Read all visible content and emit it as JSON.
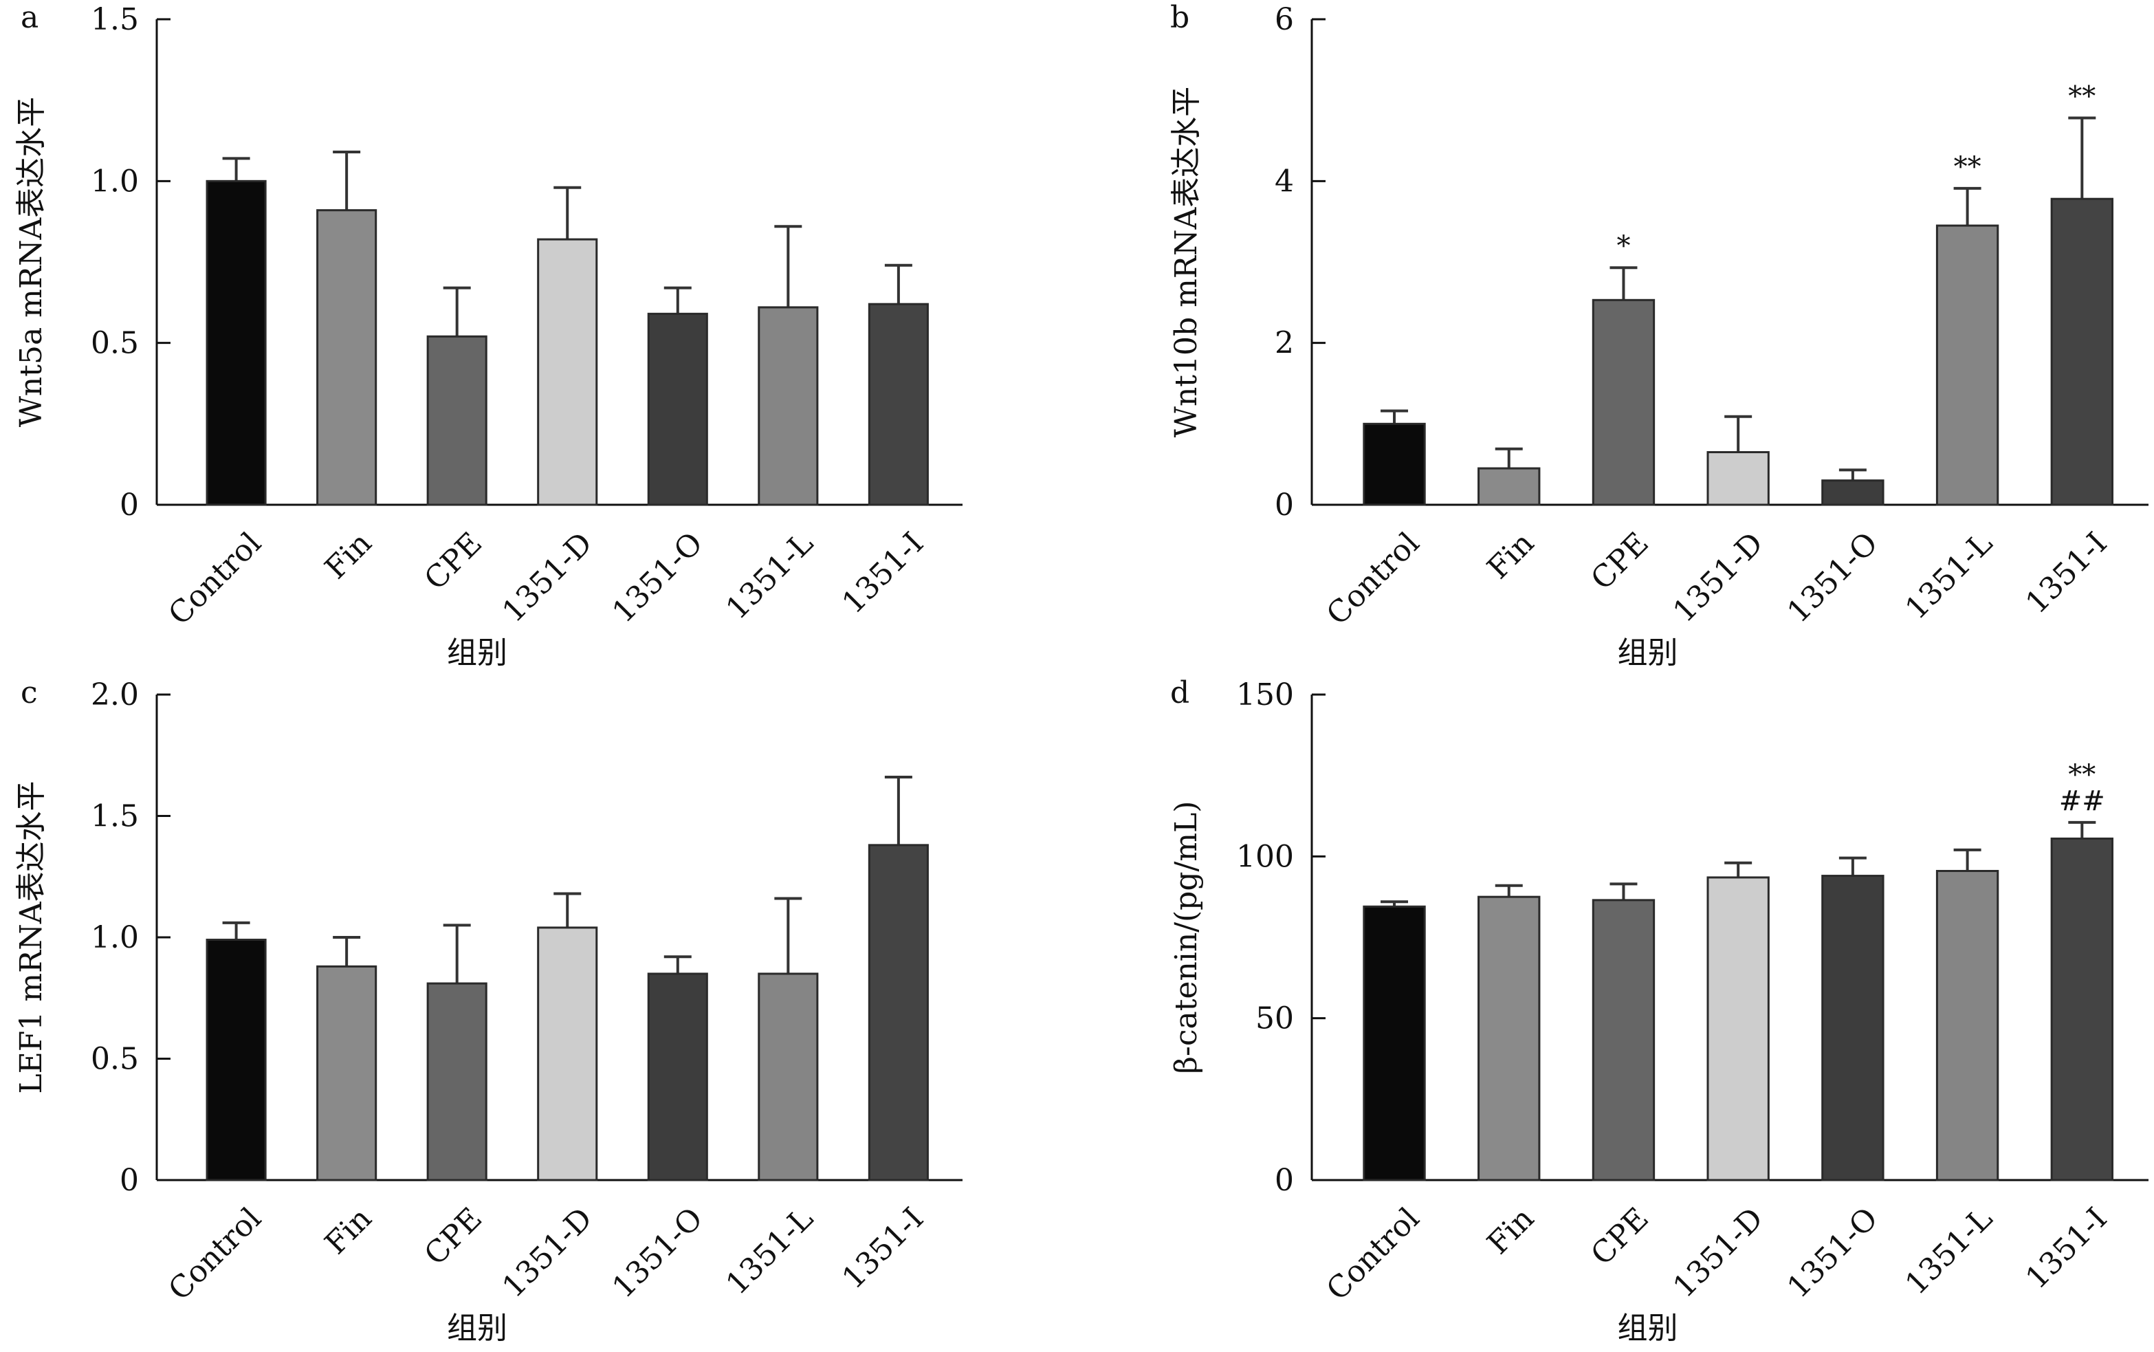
{
  "xlabel_shared": "组别",
  "chart_data": [
    {
      "panel": "a",
      "type": "bar",
      "categories": [
        "Control",
        "Fin",
        "CPE",
        "1351-D",
        "1351-O",
        "1351-L",
        "1351-I"
      ],
      "values": [
        1.0,
        0.91,
        0.52,
        0.82,
        0.59,
        0.61,
        0.62
      ],
      "errors": [
        0.07,
        0.18,
        0.15,
        0.16,
        0.08,
        0.25,
        0.12
      ],
      "significance": [
        "",
        "",
        "",
        "",
        "",
        "",
        ""
      ],
      "xlabel": "组别",
      "ylabel": "Wnt5a mRNA表达水平",
      "ylim": [
        0,
        1.5
      ],
      "yticks": [
        0,
        0.5,
        1.0,
        1.5
      ],
      "ytick_labels": [
        "0",
        "0.5",
        "1.0",
        "1.5"
      ],
      "grid": false
    },
    {
      "panel": "b",
      "type": "bar",
      "categories": [
        "Control",
        "Fin",
        "CPE",
        "1351-D",
        "1351-O",
        "1351-L",
        "1351-I"
      ],
      "values": [
        1.0,
        0.45,
        2.53,
        0.65,
        0.3,
        3.45,
        3.78
      ],
      "errors": [
        0.16,
        0.24,
        0.4,
        0.44,
        0.13,
        0.46,
        1.0
      ],
      "significance": [
        "",
        "",
        "*",
        "",
        "",
        "**",
        "**"
      ],
      "xlabel": "组别",
      "ylabel": "Wnt10b mRNA表达水平",
      "ylim": [
        0,
        6
      ],
      "yticks": [
        0,
        2,
        4,
        6
      ],
      "ytick_labels": [
        "0",
        "2",
        "4",
        "6"
      ],
      "grid": false
    },
    {
      "panel": "c",
      "type": "bar",
      "categories": [
        "Control",
        "Fin",
        "CPE",
        "1351-D",
        "1351-O",
        "1351-L",
        "1351-I"
      ],
      "values": [
        0.99,
        0.88,
        0.81,
        1.04,
        0.85,
        0.85,
        1.38
      ],
      "errors": [
        0.07,
        0.12,
        0.24,
        0.14,
        0.07,
        0.31,
        0.28
      ],
      "significance": [
        "",
        "",
        "",
        "",
        "",
        "",
        ""
      ],
      "xlabel": "组别",
      "ylabel": "LEF1 mRNA表达水平",
      "ylim": [
        0,
        2.0
      ],
      "yticks": [
        0,
        0.5,
        1.0,
        1.5,
        2.0
      ],
      "ytick_labels": [
        "0",
        "0.5",
        "1.0",
        "1.5",
        "2.0"
      ],
      "grid": false
    },
    {
      "panel": "d",
      "type": "bar",
      "categories": [
        "Control",
        "Fin",
        "CPE",
        "1351-D",
        "1351-O",
        "1351-L",
        "1351-I"
      ],
      "values": [
        84.5,
        87.5,
        86.5,
        93.5,
        94.0,
        95.5,
        105.5
      ],
      "errors": [
        1.5,
        3.5,
        5.0,
        4.5,
        5.5,
        6.5,
        5.0
      ],
      "significance": [
        "",
        "",
        "",
        "",
        "",
        "",
        "**\n##"
      ],
      "xlabel": "组别",
      "ylabel": "β-catenin/(pg/mL)",
      "ylim": [
        0,
        150
      ],
      "yticks": [
        0,
        50,
        100,
        150
      ],
      "ytick_labels": [
        "0",
        "50",
        "100",
        "150"
      ],
      "grid": false
    }
  ],
  "bar_colors": [
    "#0a0a0a",
    "#8a8a8a",
    "#666666",
    "#cdcdcd",
    "#3d3d3d",
    "#858585",
    "#444444"
  ],
  "axis_color": "#111111"
}
